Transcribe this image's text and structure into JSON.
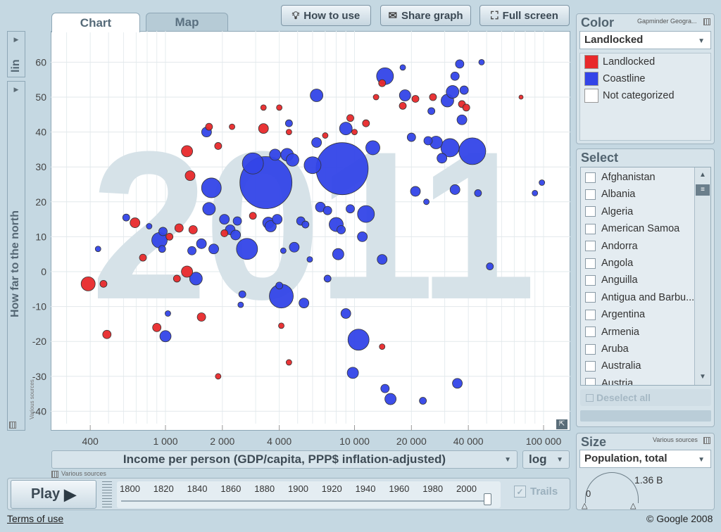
{
  "toolbar": {
    "how_to_use": "How to use",
    "share_graph": "Share graph",
    "full_screen": "Full screen"
  },
  "tabs": {
    "chart": "Chart",
    "map": "Map"
  },
  "y_axis": {
    "scale": "lin",
    "label": "How far to the north",
    "source": "Various sources"
  },
  "x_axis": {
    "label": "Income per person (GDP/capita, PPP$ inflation-adjusted)",
    "scale": "log",
    "source": "Various sources"
  },
  "play": {
    "label": "Play",
    "years": [
      "1800",
      "1820",
      "1840",
      "1860",
      "1880",
      "1900",
      "1920",
      "1940",
      "1960",
      "1980",
      "2000"
    ],
    "trails": "Trails"
  },
  "color_panel": {
    "title": "Color",
    "source": "Gapminder Geogra...",
    "selected": "Landlocked",
    "legend": [
      {
        "label": "Landlocked",
        "color": "#e8292b"
      },
      {
        "label": "Coastline",
        "color": "#3344e8"
      },
      {
        "label": "Not categorized",
        "color": "#ffffff"
      }
    ]
  },
  "select_panel": {
    "title": "Select",
    "countries": [
      "Afghanistan",
      "Albania",
      "Algeria",
      "American Samoa",
      "Andorra",
      "Angola",
      "Anguilla",
      "Antigua and Barbu...",
      "Argentina",
      "Armenia",
      "Aruba",
      "Australia",
      "Austria"
    ],
    "deselect": "Deselect all"
  },
  "size_panel": {
    "title": "Size",
    "source": "Various sources",
    "selected": "Population, total",
    "min": "0",
    "max": "1.36 B"
  },
  "footer": {
    "terms": "Terms of use",
    "copyright": "© Google 2008"
  },
  "chart_data": {
    "type": "scatter",
    "watermark_year": "2011",
    "xscale": "log",
    "xlim": [
      300,
      120000
    ],
    "ylim": [
      -45,
      68
    ],
    "x_ticks": [
      400,
      1000,
      2000,
      4000,
      10000,
      20000,
      40000,
      100000
    ],
    "x_tick_labels": [
      "400",
      "1 000",
      "2 000",
      "4 000",
      "10 000",
      "20 000",
      "40 000",
      "100 000"
    ],
    "y_ticks": [
      -40,
      -30,
      -20,
      -10,
      0,
      10,
      20,
      30,
      40,
      50,
      60
    ],
    "grid": true,
    "series": [
      {
        "name": "Landlocked",
        "color": "#e8292b",
        "points": [
          {
            "x": 390,
            "y": -3.5,
            "r": 10
          },
          {
            "x": 470,
            "y": -3.5,
            "r": 5
          },
          {
            "x": 490,
            "y": -18,
            "r": 6
          },
          {
            "x": 690,
            "y": 14,
            "r": 7
          },
          {
            "x": 760,
            "y": 4,
            "r": 5
          },
          {
            "x": 900,
            "y": -16,
            "r": 6
          },
          {
            "x": 1050,
            "y": 10,
            "r": 5
          },
          {
            "x": 1150,
            "y": -2,
            "r": 5
          },
          {
            "x": 1180,
            "y": 12.5,
            "r": 6
          },
          {
            "x": 1300,
            "y": 34.5,
            "r": 8
          },
          {
            "x": 1300,
            "y": 0,
            "r": 8
          },
          {
            "x": 1350,
            "y": 27.5,
            "r": 7
          },
          {
            "x": 1400,
            "y": 12,
            "r": 6
          },
          {
            "x": 1550,
            "y": -13,
            "r": 6
          },
          {
            "x": 1700,
            "y": 41.5,
            "r": 5
          },
          {
            "x": 1900,
            "y": 36,
            "r": 5
          },
          {
            "x": 1900,
            "y": -30,
            "r": 4
          },
          {
            "x": 2050,
            "y": 11,
            "r": 5
          },
          {
            "x": 2250,
            "y": 41.5,
            "r": 4
          },
          {
            "x": 2900,
            "y": 16,
            "r": 5
          },
          {
            "x": 3300,
            "y": 47,
            "r": 4
          },
          {
            "x": 3300,
            "y": 41,
            "r": 7
          },
          {
            "x": 4000,
            "y": 47,
            "r": 4
          },
          {
            "x": 4100,
            "y": -15.5,
            "r": 4
          },
          {
            "x": 4500,
            "y": -26,
            "r": 4
          },
          {
            "x": 4500,
            "y": 40,
            "r": 4
          },
          {
            "x": 7000,
            "y": 39,
            "r": 4
          },
          {
            "x": 9500,
            "y": 44,
            "r": 5
          },
          {
            "x": 10000,
            "y": 40,
            "r": 4
          },
          {
            "x": 11500,
            "y": 42.5,
            "r": 5
          },
          {
            "x": 13000,
            "y": 50,
            "r": 4
          },
          {
            "x": 14000,
            "y": -21.5,
            "r": 4
          },
          {
            "x": 14000,
            "y": 54,
            "r": 5
          },
          {
            "x": 18000,
            "y": 47.5,
            "r": 5
          },
          {
            "x": 21000,
            "y": 49.5,
            "r": 5
          },
          {
            "x": 26000,
            "y": 50,
            "r": 5
          },
          {
            "x": 37000,
            "y": 48,
            "r": 5
          },
          {
            "x": 39000,
            "y": 47,
            "r": 5
          },
          {
            "x": 76000,
            "y": 50,
            "r": 3
          }
        ]
      },
      {
        "name": "Coastline",
        "color": "#3344e8",
        "points": [
          {
            "x": 440,
            "y": 6.5,
            "r": 4
          },
          {
            "x": 620,
            "y": 15.5,
            "r": 5
          },
          {
            "x": 820,
            "y": 13,
            "r": 4
          },
          {
            "x": 930,
            "y": 9,
            "r": 11
          },
          {
            "x": 970,
            "y": 11.5,
            "r": 6
          },
          {
            "x": 960,
            "y": 6.5,
            "r": 5
          },
          {
            "x": 1000,
            "y": -18.5,
            "r": 8
          },
          {
            "x": 1030,
            "y": -12,
            "r": 4
          },
          {
            "x": 1450,
            "y": -2,
            "r": 9
          },
          {
            "x": 1380,
            "y": 6,
            "r": 6
          },
          {
            "x": 1550,
            "y": 8,
            "r": 7
          },
          {
            "x": 1650,
            "y": 40,
            "r": 7
          },
          {
            "x": 1700,
            "y": 18,
            "r": 9
          },
          {
            "x": 1750,
            "y": 24,
            "r": 14
          },
          {
            "x": 1800,
            "y": 6.5,
            "r": 7
          },
          {
            "x": 2050,
            "y": 15,
            "r": 7
          },
          {
            "x": 2200,
            "y": 12,
            "r": 7
          },
          {
            "x": 2350,
            "y": 10.5,
            "r": 7
          },
          {
            "x": 2400,
            "y": 14.5,
            "r": 6
          },
          {
            "x": 2500,
            "y": -9.5,
            "r": 4
          },
          {
            "x": 2550,
            "y": -6.5,
            "r": 5
          },
          {
            "x": 2700,
            "y": 6.5,
            "r": 15
          },
          {
            "x": 2900,
            "y": 31,
            "r": 15
          },
          {
            "x": 3400,
            "y": 25.5,
            "r": 37
          },
          {
            "x": 3500,
            "y": 14,
            "r": 8
          },
          {
            "x": 3600,
            "y": 13,
            "r": 8
          },
          {
            "x": 3800,
            "y": 33.5,
            "r": 8
          },
          {
            "x": 3900,
            "y": 15,
            "r": 7
          },
          {
            "x": 4000,
            "y": -4,
            "r": 5
          },
          {
            "x": 4100,
            "y": -7,
            "r": 17
          },
          {
            "x": 4200,
            "y": 6,
            "r": 4
          },
          {
            "x": 4400,
            "y": 33.5,
            "r": 9
          },
          {
            "x": 4500,
            "y": 42.5,
            "r": 5
          },
          {
            "x": 4700,
            "y": 32,
            "r": 9
          },
          {
            "x": 4800,
            "y": 7,
            "r": 7
          },
          {
            "x": 5200,
            "y": 14.5,
            "r": 6
          },
          {
            "x": 5400,
            "y": -9,
            "r": 7
          },
          {
            "x": 5500,
            "y": 13.5,
            "r": 5
          },
          {
            "x": 5800,
            "y": 3.5,
            "r": 4
          },
          {
            "x": 6300,
            "y": 50.5,
            "r": 9
          },
          {
            "x": 6000,
            "y": 30.5,
            "r": 12
          },
          {
            "x": 6300,
            "y": 37,
            "r": 7
          },
          {
            "x": 6600,
            "y": 18.5,
            "r": 7
          },
          {
            "x": 7200,
            "y": -2,
            "r": 5
          },
          {
            "x": 7200,
            "y": 17.5,
            "r": 6
          },
          {
            "x": 8000,
            "y": 13.5,
            "r": 10
          },
          {
            "x": 8200,
            "y": 5,
            "r": 8
          },
          {
            "x": 8500,
            "y": 12,
            "r": 6
          },
          {
            "x": 8600,
            "y": 29.5,
            "r": 37
          },
          {
            "x": 9000,
            "y": 41,
            "r": 9
          },
          {
            "x": 9000,
            "y": -12,
            "r": 7
          },
          {
            "x": 9500,
            "y": 18,
            "r": 6
          },
          {
            "x": 9800,
            "y": -29,
            "r": 8
          },
          {
            "x": 10500,
            "y": -19.5,
            "r": 15
          },
          {
            "x": 11000,
            "y": 10,
            "r": 7
          },
          {
            "x": 11500,
            "y": 16.5,
            "r": 12
          },
          {
            "x": 12500,
            "y": 35.5,
            "r": 10
          },
          {
            "x": 14000,
            "y": 3.5,
            "r": 7
          },
          {
            "x": 14500,
            "y": 56,
            "r": 12
          },
          {
            "x": 14500,
            "y": -33.5,
            "r": 6
          },
          {
            "x": 15500,
            "y": -36.5,
            "r": 8
          },
          {
            "x": 18000,
            "y": 58.5,
            "r": 4
          },
          {
            "x": 18500,
            "y": 50.5,
            "r": 8
          },
          {
            "x": 20000,
            "y": 38.5,
            "r": 6
          },
          {
            "x": 21000,
            "y": 23,
            "r": 7
          },
          {
            "x": 23000,
            "y": -37,
            "r": 5
          },
          {
            "x": 24000,
            "y": 20,
            "r": 4
          },
          {
            "x": 24500,
            "y": 37.5,
            "r": 6
          },
          {
            "x": 25500,
            "y": 46,
            "r": 5
          },
          {
            "x": 27000,
            "y": 37,
            "r": 9
          },
          {
            "x": 29000,
            "y": 32.5,
            "r": 7
          },
          {
            "x": 31000,
            "y": 49,
            "r": 9
          },
          {
            "x": 32000,
            "y": 35.5,
            "r": 13
          },
          {
            "x": 33000,
            "y": 51.5,
            "r": 9
          },
          {
            "x": 34000,
            "y": 56,
            "r": 6
          },
          {
            "x": 34000,
            "y": 23.5,
            "r": 7
          },
          {
            "x": 35000,
            "y": -32,
            "r": 7
          },
          {
            "x": 36000,
            "y": 59.5,
            "r": 6
          },
          {
            "x": 37000,
            "y": 43.5,
            "r": 7
          },
          {
            "x": 38000,
            "y": 52,
            "r": 6
          },
          {
            "x": 42000,
            "y": 34.5,
            "r": 19
          },
          {
            "x": 45000,
            "y": 22.5,
            "r": 5
          },
          {
            "x": 47000,
            "y": 60,
            "r": 4
          },
          {
            "x": 52000,
            "y": 1.5,
            "r": 5
          },
          {
            "x": 90000,
            "y": 22.5,
            "r": 4
          },
          {
            "x": 98000,
            "y": 25.5,
            "r": 4
          }
        ]
      }
    ]
  }
}
